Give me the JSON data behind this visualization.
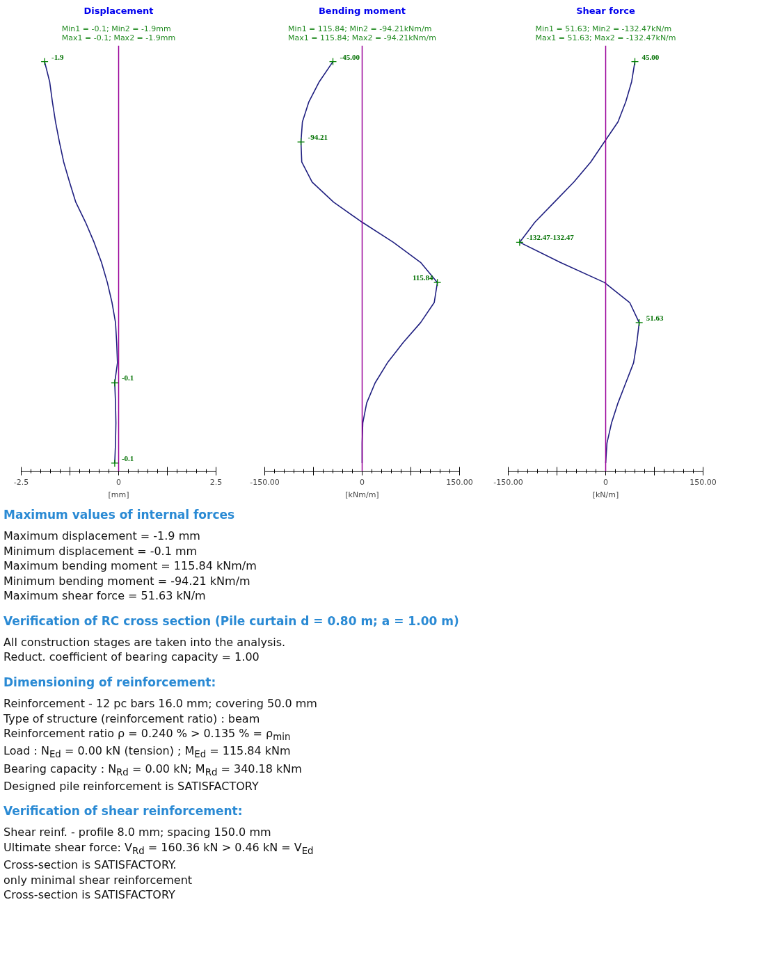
{
  "chart_data": [
    {
      "type": "line",
      "orientation": "horizontal",
      "title": "Displacement",
      "subtitle": "Min1 = -0.1; Min2 = -1.9mm\nMax1 = -0.1; Max2 = -1.9mm",
      "xlabel": "[mm]",
      "tick_labels": "x",
      "grid": false,
      "color": "#1f1f80",
      "categories": [
        null,
        null,
        null,
        null,
        null,
        null,
        null,
        null,
        null,
        null,
        null,
        null,
        null,
        null,
        null,
        null,
        null,
        null,
        null,
        null,
        null
      ],
      "values": [
        -1.9,
        -1.77,
        -1.7,
        -1.62,
        -1.52,
        -1.41,
        -1.26,
        -1.1,
        -0.85,
        -0.63,
        -0.44,
        -0.29,
        -0.17,
        -0.08,
        -0.05,
        -0.03,
        -0.1,
        -0.08,
        -0.07,
        -0.08,
        -0.1
      ],
      "value_labels": [
        "-1.9",
        null,
        null,
        null,
        null,
        null,
        null,
        null,
        null,
        null,
        null,
        null,
        null,
        null,
        null,
        null,
        "-0.1",
        null,
        null,
        null,
        "-0.1"
      ],
      "xlim": [
        -2.5,
        2.5
      ],
      "xticks": [
        -2.5,
        {
          "value": -1.25,
          "label": null
        },
        0,
        {
          "value": 1.25,
          "label": null
        },
        2.5
      ],
      "ref_lines": [
        {
          "axis": "x",
          "value": 0,
          "color": "#990099"
        }
      ]
    },
    {
      "type": "line",
      "orientation": "horizontal",
      "title": "Bending moment",
      "subtitle": "Min1 = 115.84; Min2 = -94.21kNm/m\nMax1 = 115.84; Max2 = -94.21kNm/m",
      "xlabel": "[kNm/m]",
      "tick_labels": "x",
      "grid": false,
      "color": "#1f1f80",
      "categories": [
        null,
        null,
        null,
        null,
        null,
        null,
        null,
        null,
        null,
        null,
        null,
        null,
        null,
        null,
        null,
        null,
        null,
        null,
        null,
        null,
        null
      ],
      "values": [
        -45.0,
        -66,
        -82,
        -92,
        -94.21,
        -93,
        -77,
        -44,
        0,
        48,
        90,
        115.84,
        111,
        90,
        63,
        39,
        20,
        7,
        1,
        0,
        0
      ],
      "value_labels": [
        "-45.00",
        null,
        null,
        null,
        "-94.21",
        null,
        null,
        null,
        null,
        null,
        null,
        "115.84",
        null,
        null,
        null,
        null,
        null,
        null,
        null,
        null,
        null
      ],
      "xlim": [
        -150,
        150
      ],
      "xticks": [
        {
          "value": -150,
          "label": "-150.00"
        },
        {
          "value": -75,
          "label": null
        },
        0,
        {
          "value": 75,
          "label": null
        },
        {
          "value": 150,
          "label": "150.00"
        }
      ],
      "ref_lines": [
        {
          "axis": "x",
          "value": 0,
          "color": "#990099"
        }
      ]
    },
    {
      "type": "line",
      "orientation": "horizontal",
      "title": "Shear force",
      "subtitle": "Min1 = 51.63; Min2 = -132.47kN/m\nMax1 = 51.63; Max2 = -132.47kN/m",
      "xlabel": "[kN/m]",
      "tick_labels": "x",
      "grid": false,
      "color": "#1f1f80",
      "categories": [
        null,
        null,
        null,
        null,
        null,
        null,
        null,
        null,
        null,
        null,
        null,
        null,
        null,
        null,
        null,
        null,
        null,
        null,
        null,
        null,
        null
      ],
      "values": [
        45.0,
        40,
        31,
        19,
        -2,
        -23,
        -49,
        -79,
        -109,
        -132.47,
        -70,
        -2,
        37,
        51.63,
        48,
        43,
        31,
        19,
        9,
        2,
        0
      ],
      "value_labels": [
        "45.00",
        null,
        null,
        null,
        null,
        null,
        null,
        null,
        null,
        "-132.47-132.47",
        null,
        null,
        null,
        "51.63",
        null,
        null,
        null,
        null,
        null,
        null,
        null
      ],
      "xlim": [
        -150,
        150
      ],
      "xticks": [
        {
          "value": -150,
          "label": "-150.00"
        },
        {
          "value": -75,
          "label": null
        },
        0,
        {
          "value": 75,
          "label": null
        },
        {
          "value": 150,
          "label": "150.00"
        }
      ],
      "ref_lines": [
        {
          "axis": "x",
          "value": 0,
          "color": "#990099"
        }
      ]
    },
    {
      "type": "other",
      "title": "Maximum values of internal forces",
      "annotations": [
        "Maximum displacement = -1.9 mm",
        "Minimum displacement = -0.1 mm",
        "Maximum bending moment = 115.84 kNm/m",
        "Minimum bending moment = -94.21 kNm/m",
        "Maximum shear force = 51.63 kN/m"
      ]
    },
    {
      "type": "other",
      "title": "Verification of RC cross section (Pile curtain d = 0.80 m; a = 1.00 m)",
      "annotations": [
        "All construction stages are taken into the analysis.",
        "Reduct. coefficient of bearing capacity = 1.00"
      ]
    },
    {
      "type": "other",
      "title": "Dimensioning of reinforcement:",
      "annotations": [
        "Reinforcement - 12 pc bars 16.0 mm; covering 50.0 mm",
        "Type of structure (reinforcement ratio) : beam",
        "Reinforcement ratio ρ = 0.240 % > 0.135 % = ρ$_{min}$",
        "Load : N$_{Ed}$ = 0.00 kN (tension) ; M$_{Ed}$ = 115.84 kNm",
        "Bearing capacity : N$_{Rd}$ = 0.00 kN; M$_{Rd}$ = 340.18 kNm",
        "Designed pile reinforcement is SATISFACTORY"
      ]
    },
    {
      "type": "other",
      "title": "Verification of shear reinforcement:",
      "annotations": [
        "Shear reinf. - profile 8.0 mm; spacing 150.0 mm",
        "Ultimate shear force: V$_{Rd}$ = 160.36 kN > 0.46 kN = V$_{Ed}$",
        "Cross-section is SATISFACTORY.",
        "only minimal shear reinforcement",
        "Cross-section is SATISFACTORY"
      ]
    }
  ]
}
